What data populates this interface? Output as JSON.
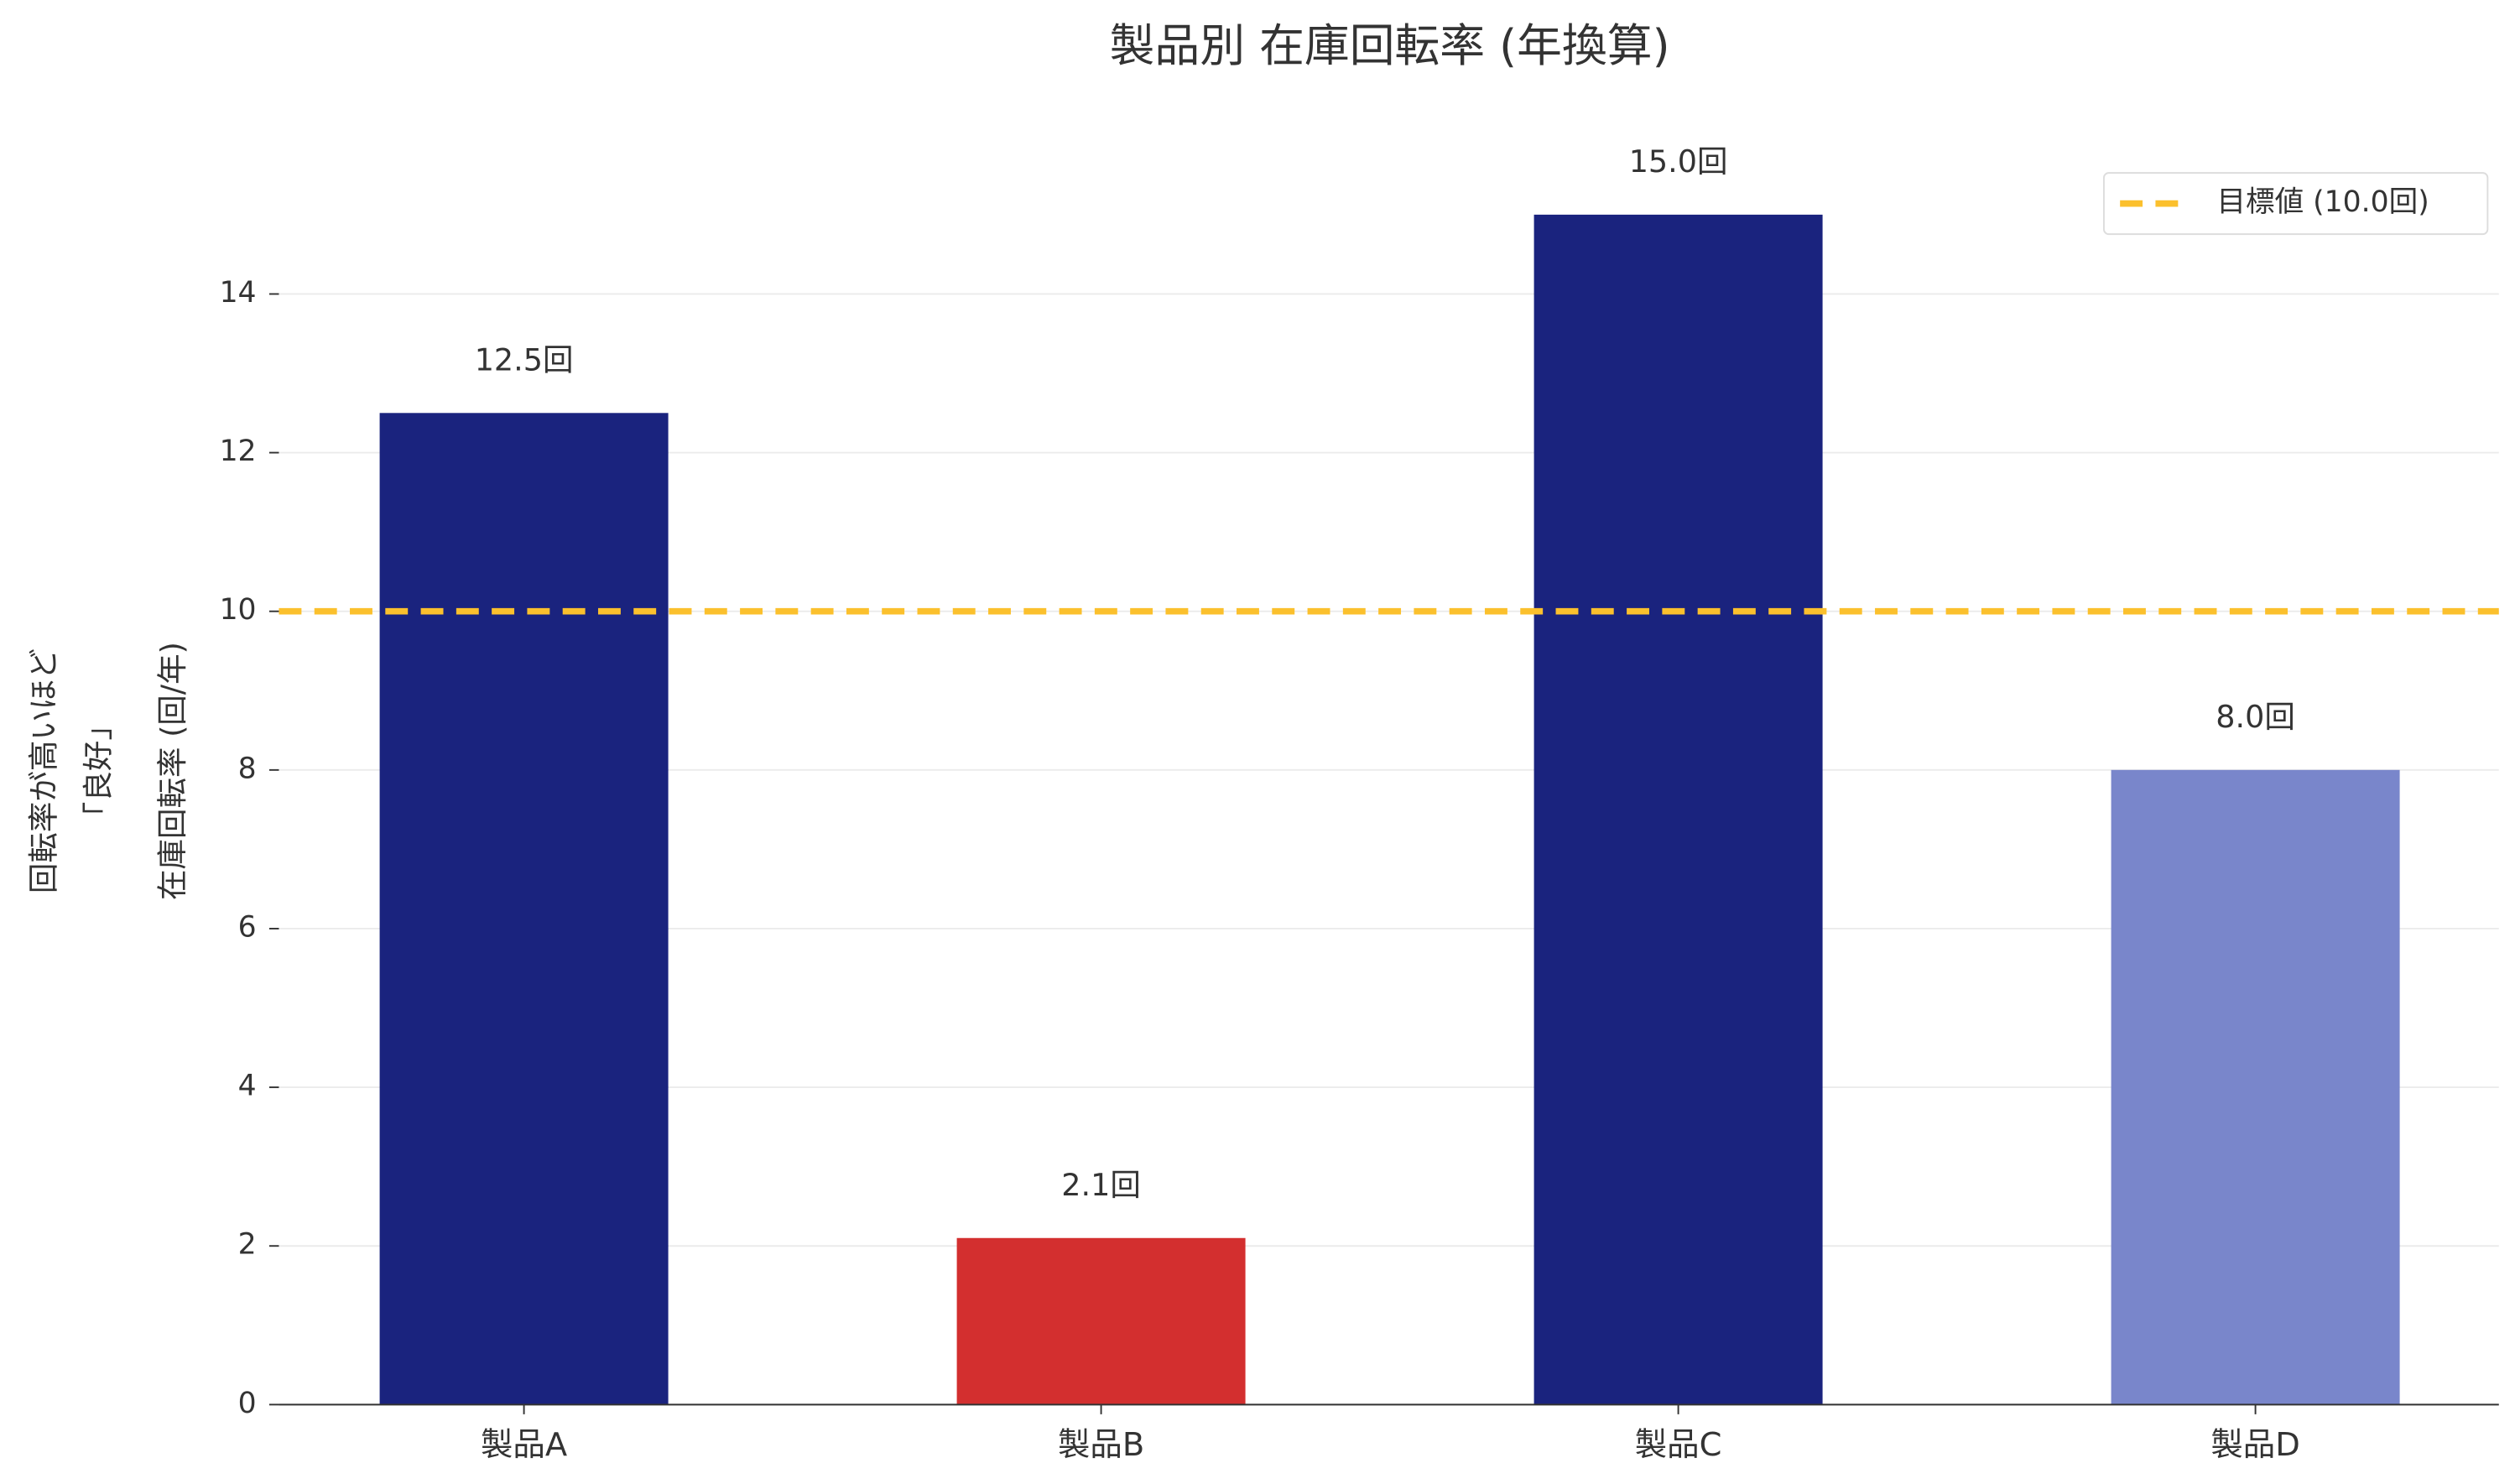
{
  "chart_data": {
    "type": "bar",
    "title": "製品別 在庫回転率 (年換算)",
    "y_label": "在庫回転率 (回/年)",
    "y_label_note": [
      "回転率が高いほど",
      "「良好」"
    ],
    "categories": [
      "製品A",
      "製品B",
      "製品C",
      "製品D"
    ],
    "values": [
      12.5,
      2.1,
      15.0,
      8.0
    ],
    "value_labels": [
      "12.5回",
      "2.1回",
      "15.0回",
      "8.0回"
    ],
    "colors": [
      "#1a237e",
      "#d32f2f",
      "#1a237e",
      "#7986cb"
    ],
    "ylim": [
      0,
      15.75
    ],
    "yticks": [
      0,
      2,
      4,
      6,
      8,
      10,
      12,
      14
    ],
    "grid": true,
    "reference_line": {
      "value": 10,
      "label": "目標値 (10.0回)",
      "color": "#fbc02d"
    },
    "legend_position": "upper right"
  }
}
